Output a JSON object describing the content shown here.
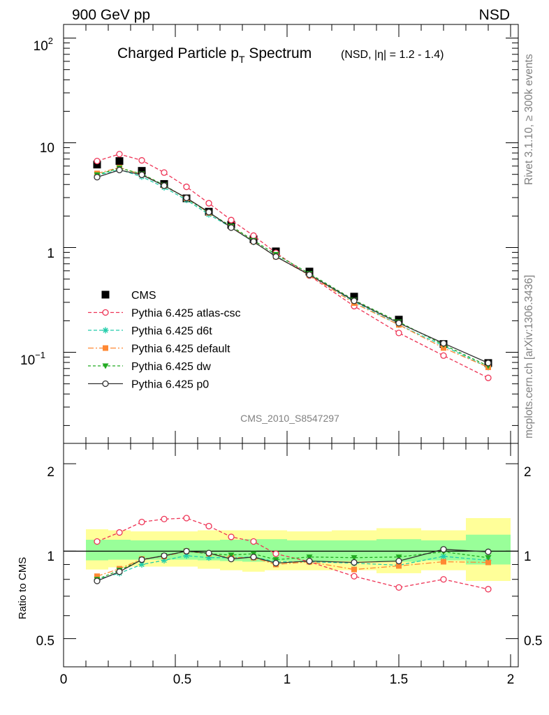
{
  "header": {
    "left": "900 GeV pp",
    "right": "NSD"
  },
  "side_labels": {
    "rivet": "Rivet 3.1.10, ≥ 300k events",
    "mcplots": "mcplots.cern.ch [arXiv:1306.3436]"
  },
  "analysis_id": "CMS_2010_S8547297",
  "chart_data": [
    {
      "type": "scatter",
      "panel": "top",
      "title": {
        "main_a": "Charged Particle p",
        "main_sub": "T",
        "main_b": " Spectrum",
        "suffix": "(NSD, |η| = 1.2 - 1.4)"
      },
      "y_scale": "log",
      "ylim": [
        0.0135,
        135
      ],
      "xlim": [
        0,
        2
      ],
      "y_tick_labels": {
        "major_100": "10",
        "major_100_exp": "2",
        "major_10": "10",
        "major_1": "1",
        "major_01": "10",
        "major_01_exp": "−1"
      },
      "legend": "middle-left",
      "x": [
        0.15,
        0.25,
        0.35,
        0.45,
        0.55,
        0.65,
        0.75,
        0.85,
        0.95,
        1.1,
        1.3,
        1.5,
        1.7,
        1.9
      ],
      "series": [
        {
          "name": "CMS",
          "color": "#000000",
          "marker": "filled-square",
          "values": [
            6.2,
            6.7,
            5.4,
            4.05,
            2.95,
            2.2,
            1.65,
            1.2,
            0.92,
            0.59,
            0.34,
            0.205,
            0.12,
            0.079
          ]
        },
        {
          "name": "Pythia 6.425 atlas-csc",
          "color": "#ee3355",
          "marker": "open-circle",
          "dash": "5,3",
          "values": [
            6.7,
            7.8,
            6.8,
            5.2,
            3.8,
            2.65,
            1.83,
            1.3,
            0.89,
            0.54,
            0.276,
            0.153,
            0.093,
            0.057
          ]
        },
        {
          "name": "Pythia 6.425 d6t",
          "color": "#22ccaa",
          "marker": "asterisk",
          "dash": "5,3",
          "values": [
            4.9,
            5.55,
            4.75,
            3.75,
            2.85,
            2.07,
            1.56,
            1.13,
            0.83,
            0.545,
            0.305,
            0.183,
            0.115,
            0.072
          ]
        },
        {
          "name": "Pythia 6.425 default",
          "color": "#ff8833",
          "marker": "filled-square-small",
          "dash": "8,3,2,3",
          "values": [
            5.1,
            5.8,
            5.0,
            3.9,
            2.95,
            2.15,
            1.57,
            1.14,
            0.82,
            0.545,
            0.295,
            0.183,
            0.11,
            0.072
          ]
        },
        {
          "name": "Pythia 6.425 dw",
          "color": "#22aa22",
          "marker": "filled-triangle-down",
          "dash": "4,3",
          "values": [
            4.95,
            5.75,
            5.05,
            3.95,
            2.95,
            2.15,
            1.6,
            1.17,
            0.86,
            0.565,
            0.315,
            0.195,
            0.118,
            0.074
          ]
        },
        {
          "name": "Pythia 6.425 p0",
          "color": "#303030",
          "marker": "open-circle",
          "dash": "",
          "values": [
            4.7,
            5.5,
            4.95,
            3.9,
            2.98,
            2.18,
            1.55,
            1.14,
            0.82,
            0.55,
            0.31,
            0.19,
            0.122,
            0.079
          ]
        }
      ]
    },
    {
      "type": "scatter",
      "panel": "ratio",
      "ylabel": "Ratio to CMS",
      "y_scale": "log",
      "ylim": [
        0.4,
        2.35
      ],
      "xlim": [
        0,
        2
      ],
      "y_tick_labels": [
        "0.5",
        "1",
        "2"
      ],
      "x_tick_labels": [
        "0",
        "0.5",
        "1",
        "1.5",
        "2"
      ],
      "x": [
        0.15,
        0.25,
        0.35,
        0.45,
        0.55,
        0.65,
        0.75,
        0.85,
        0.95,
        1.1,
        1.3,
        1.5,
        1.7,
        1.9
      ],
      "bands": {
        "bin_edges": [
          0.1,
          0.2,
          0.3,
          0.4,
          0.5,
          0.6,
          0.7,
          0.8,
          0.9,
          1.0,
          1.2,
          1.4,
          1.6,
          1.8,
          2.0
        ],
        "yellow": {
          "color": "#ffff99",
          "lo": [
            0.865,
            0.88,
            0.885,
            0.885,
            0.885,
            0.87,
            0.86,
            0.85,
            0.86,
            0.86,
            0.86,
            0.84,
            0.86,
            0.79
          ],
          "hi": [
            1.19,
            1.18,
            1.17,
            1.17,
            1.17,
            1.18,
            1.18,
            1.18,
            1.18,
            1.17,
            1.18,
            1.2,
            1.18,
            1.3
          ]
        },
        "green": {
          "color": "#99ff99",
          "lo": [
            0.93,
            0.935,
            0.935,
            0.935,
            0.935,
            0.93,
            0.925,
            0.92,
            0.925,
            0.925,
            0.925,
            0.92,
            0.93,
            0.9
          ],
          "hi": [
            1.095,
            1.095,
            1.09,
            1.09,
            1.09,
            1.09,
            1.095,
            1.1,
            1.1,
            1.09,
            1.09,
            1.1,
            1.09,
            1.14
          ]
        }
      },
      "series": [
        {
          "name": "Pythia 6.425 atlas-csc",
          "color": "#ee3355",
          "marker": "open-circle",
          "dash": "5,3",
          "values": [
            1.08,
            1.16,
            1.26,
            1.29,
            1.3,
            1.22,
            1.12,
            1.08,
            0.98,
            0.92,
            0.82,
            0.75,
            0.8,
            0.74
          ]
        },
        {
          "name": "Pythia 6.425 d6t",
          "color": "#22ccaa",
          "marker": "asterisk",
          "dash": "5,3",
          "values": [
            0.8,
            0.84,
            0.9,
            0.93,
            0.965,
            0.95,
            0.95,
            0.955,
            0.92,
            0.92,
            0.91,
            0.895,
            0.96,
            0.93
          ]
        },
        {
          "name": "Pythia 6.425 default",
          "color": "#ff8833",
          "marker": "filled-square-small",
          "dash": "8,3,2,3",
          "values": [
            0.82,
            0.87,
            0.94,
            0.96,
            1.0,
            0.98,
            0.95,
            0.95,
            0.9,
            0.92,
            0.865,
            0.89,
            0.92,
            0.915
          ]
        },
        {
          "name": "Pythia 6.425 dw",
          "color": "#22aa22",
          "marker": "filled-triangle-down",
          "dash": "4,3",
          "values": [
            0.8,
            0.86,
            0.935,
            0.965,
            1.0,
            0.98,
            0.97,
            0.98,
            0.935,
            0.955,
            0.95,
            0.955,
            0.995,
            0.95
          ]
        },
        {
          "name": "Pythia 6.425 p0",
          "color": "#303030",
          "marker": "open-circle",
          "dash": "",
          "values": [
            0.79,
            0.85,
            0.935,
            0.965,
            1.0,
            0.985,
            0.94,
            0.955,
            0.91,
            0.925,
            0.915,
            0.925,
            1.015,
            0.995
          ]
        }
      ]
    }
  ]
}
